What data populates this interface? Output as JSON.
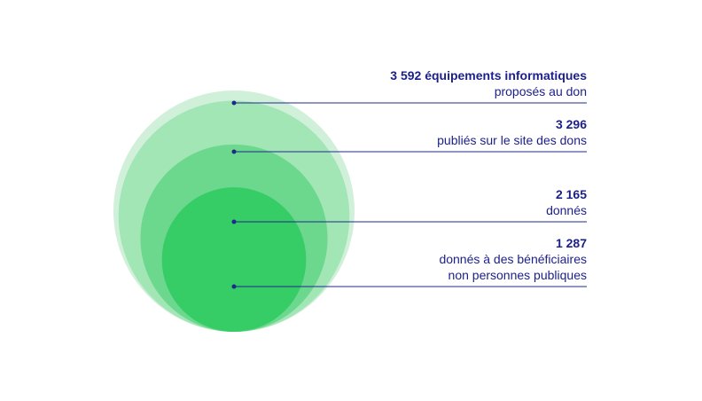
{
  "chart_data": {
    "type": "nested-bubble",
    "title": "",
    "colors": {
      "bubbles": [
        "#d1f0da",
        "#a2e6b6",
        "#6cd88e",
        "#36cc66"
      ],
      "leader_line": "#1e2a8a",
      "label_text": "#1b1f8a"
    },
    "items": [
      {
        "value": 3592,
        "value_label": "3 592 équipements informatiques",
        "text_lines": [
          "proposés au don"
        ]
      },
      {
        "value": 3296,
        "value_label": "3 296",
        "text_lines": [
          "publiés sur le site des dons"
        ]
      },
      {
        "value": 2165,
        "value_label": "2 165",
        "text_lines": [
          "donnés"
        ]
      },
      {
        "value": 1287,
        "value_label": "1 287",
        "text_lines": [
          "donnés à des bénéficiaires",
          "non personnes publiques"
        ]
      }
    ]
  }
}
